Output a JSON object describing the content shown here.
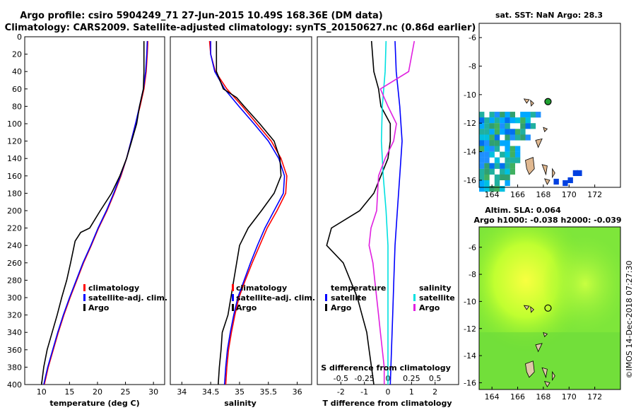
{
  "header": {
    "line1": "Argo profile: csiro 5904249_71 27-Jun-2015 10.49S 168.36E (DM data)",
    "line2": "Climatology: CARS2009. Satellite-adjusted climatology: synTS_20150627.nc (0.86d earlier)"
  },
  "colors": {
    "climatology": "#ff0000",
    "satellite": "#0000ff",
    "argo": "#000000",
    "t_sat": "#00e0e0",
    "s_clim": "#e020e0"
  },
  "legend": {
    "climatology": "climatology",
    "satellite_adj": "satellite-adj. clim.",
    "argo": "Argo"
  },
  "diff_legend": {
    "temperature": "temperature",
    "salinity": "salinity",
    "satellite": "satellite",
    "argo": "Argo"
  },
  "map_sst": {
    "title": "sat. SST: NaN Argo: 28.3",
    "argo_lon": 168.36,
    "argo_lat": -10.49
  },
  "map_sla": {
    "title1": "Altim. SLA: 0.064",
    "title2": "Argo h1000: -0.038 h2000: -0.039",
    "argo_lon": 168.36,
    "argo_lat": -10.49
  },
  "watermark": "©IMOS 14-Dec-2018 07:27:30",
  "chart_data": [
    {
      "type": "line",
      "id": "temperature",
      "xlabel": "temperature (deg C)",
      "ylabel": "depth",
      "xlim": [
        7,
        32
      ],
      "ylim": [
        400,
        0
      ],
      "xticks": [
        10,
        15,
        20,
        25,
        30
      ],
      "yticks": [
        0,
        20,
        40,
        60,
        80,
        100,
        120,
        140,
        160,
        180,
        200,
        220,
        240,
        260,
        280,
        300,
        320,
        340,
        360,
        380,
        400
      ],
      "series": [
        {
          "name": "climatology",
          "depth": [
            5,
            20,
            40,
            60,
            80,
            100,
            120,
            140,
            160,
            180,
            200,
            220,
            240,
            260,
            280,
            300,
            320,
            340,
            360,
            380,
            400
          ],
          "values": [
            29.0,
            28.9,
            28.7,
            28.3,
            27.6,
            26.8,
            26.0,
            25.2,
            24.2,
            23.0,
            21.7,
            20.2,
            18.9,
            17.5,
            16.3,
            15.1,
            14.0,
            13.0,
            12.1,
            11.2,
            10.5
          ]
        },
        {
          "name": "satellite-adj. clim.",
          "depth": [
            5,
            20,
            40,
            60,
            80,
            100,
            120,
            140,
            160,
            180,
            200,
            220,
            240,
            260,
            280,
            300,
            320,
            340,
            360,
            380,
            400
          ],
          "values": [
            28.9,
            28.8,
            28.6,
            28.2,
            27.5,
            26.8,
            26.0,
            25.2,
            24.1,
            22.9,
            21.6,
            20.1,
            18.8,
            17.4,
            16.2,
            15.0,
            13.9,
            12.9,
            12.0,
            11.1,
            10.4
          ]
        },
        {
          "name": "Argo",
          "depth": [
            5,
            20,
            40,
            60,
            80,
            100,
            120,
            140,
            160,
            180,
            200,
            220,
            225,
            235,
            260,
            280,
            300,
            320,
            340,
            360,
            380,
            400
          ],
          "values": [
            28.3,
            28.3,
            28.3,
            28.2,
            27.5,
            27.0,
            26.1,
            25.2,
            24.0,
            22.5,
            20.5,
            18.6,
            17.0,
            16.0,
            15.2,
            14.5,
            13.6,
            12.8,
            11.9,
            11.0,
            10.4,
            10.0
          ]
        }
      ]
    },
    {
      "type": "line",
      "id": "salinity",
      "xlabel": "salinity",
      "xlim": [
        33.8,
        36.25
      ],
      "ylim": [
        400,
        0
      ],
      "xticks": [
        34,
        34.5,
        35,
        35.5,
        36
      ],
      "series": [
        {
          "name": "climatology",
          "depth": [
            5,
            20,
            40,
            60,
            80,
            100,
            120,
            140,
            160,
            180,
            200,
            220,
            240,
            260,
            280,
            300,
            320,
            340,
            360,
            380,
            400
          ],
          "values": [
            34.48,
            34.5,
            34.58,
            34.78,
            35.05,
            35.3,
            35.55,
            35.72,
            35.82,
            35.8,
            35.65,
            35.48,
            35.35,
            35.22,
            35.1,
            34.99,
            34.92,
            34.86,
            34.81,
            34.78,
            34.76
          ]
        },
        {
          "name": "satellite-adj. clim.",
          "depth": [
            5,
            20,
            40,
            60,
            80,
            100,
            120,
            140,
            160,
            180,
            200,
            220,
            240,
            260,
            280,
            300,
            320,
            340,
            360,
            380,
            400
          ],
          "values": [
            34.5,
            34.5,
            34.57,
            34.74,
            34.99,
            35.25,
            35.5,
            35.68,
            35.78,
            35.76,
            35.6,
            35.44,
            35.31,
            35.19,
            35.08,
            34.97,
            34.9,
            34.84,
            34.79,
            34.76,
            34.74
          ]
        },
        {
          "name": "Argo",
          "depth": [
            5,
            20,
            40,
            60,
            70,
            80,
            100,
            120,
            140,
            160,
            180,
            200,
            220,
            240,
            260,
            280,
            300,
            320,
            340,
            360,
            380,
            400
          ],
          "values": [
            34.6,
            34.6,
            34.6,
            34.72,
            34.95,
            35.08,
            35.35,
            35.6,
            35.7,
            35.72,
            35.6,
            35.38,
            35.15,
            35.0,
            34.95,
            34.9,
            34.85,
            34.8,
            34.7,
            34.68,
            34.65,
            34.63
          ]
        }
      ]
    },
    {
      "type": "line",
      "id": "differences",
      "xlabel": "T difference from climatology",
      "xlabel_top": "S difference from climatology",
      "xlim": [
        -3,
        3
      ],
      "ylim": [
        400,
        0
      ],
      "xticks": [
        -2,
        -1,
        0,
        1,
        2
      ],
      "xticks_s": [
        -0.5,
        -0.25,
        0,
        0.25,
        0.5
      ],
      "xlim_s": [
        -0.75,
        0.75
      ],
      "series": [
        {
          "name": "temperature satellite",
          "depth": [
            5,
            40,
            80,
            120,
            160,
            200,
            240,
            280,
            320,
            360,
            400
          ],
          "values": [
            0.3,
            0.35,
            0.5,
            0.6,
            0.5,
            0.4,
            0.3,
            0.25,
            0.2,
            0.15,
            0.1
          ]
        },
        {
          "name": "temperature Argo",
          "depth": [
            5,
            40,
            60,
            80,
            100,
            120,
            140,
            160,
            180,
            200,
            220,
            240,
            260,
            280,
            300,
            320,
            340,
            360,
            380,
            400
          ],
          "values": [
            -0.7,
            -0.6,
            -0.4,
            -0.3,
            0.1,
            0.1,
            0.0,
            -0.3,
            -0.6,
            -1.2,
            -2.4,
            -2.6,
            -1.9,
            -1.6,
            -1.3,
            -1.1,
            -0.9,
            -0.8,
            -0.7,
            -0.6
          ]
        },
        {
          "name": "salinity satellite",
          "depth": [
            5,
            40,
            80,
            120,
            160,
            200,
            240,
            280,
            320,
            360,
            400
          ],
          "values": [
            -0.02,
            -0.03,
            -0.06,
            -0.07,
            -0.05,
            -0.02,
            0.0,
            0.0,
            0.0,
            0.0,
            0.0
          ]
        },
        {
          "name": "salinity Argo",
          "depth": [
            5,
            40,
            60,
            80,
            100,
            120,
            140,
            160,
            180,
            200,
            220,
            240,
            260,
            280,
            300,
            320,
            340,
            360,
            380,
            400
          ],
          "values": [
            0.28,
            0.22,
            -0.08,
            0.0,
            0.09,
            0.06,
            -0.03,
            -0.1,
            -0.11,
            -0.12,
            -0.18,
            -0.2,
            -0.16,
            -0.14,
            -0.12,
            -0.1,
            -0.08,
            -0.06,
            -0.04,
            -0.04
          ]
        }
      ]
    }
  ],
  "map_axes": {
    "sst": {
      "xlim": [
        163,
        174
      ],
      "ylim": [
        -16.5,
        -5
      ],
      "xticks": [
        164,
        166,
        168,
        170,
        172
      ],
      "yticks": [
        -6,
        -8,
        -10,
        -12,
        -14,
        -16
      ]
    },
    "sla": {
      "xlim": [
        163,
        174
      ],
      "ylim": [
        -16.5,
        -4.5
      ],
      "xticks": [
        164,
        166,
        168,
        170,
        172
      ],
      "yticks": [
        -6,
        -8,
        -10,
        -12,
        -14,
        -16
      ]
    }
  }
}
